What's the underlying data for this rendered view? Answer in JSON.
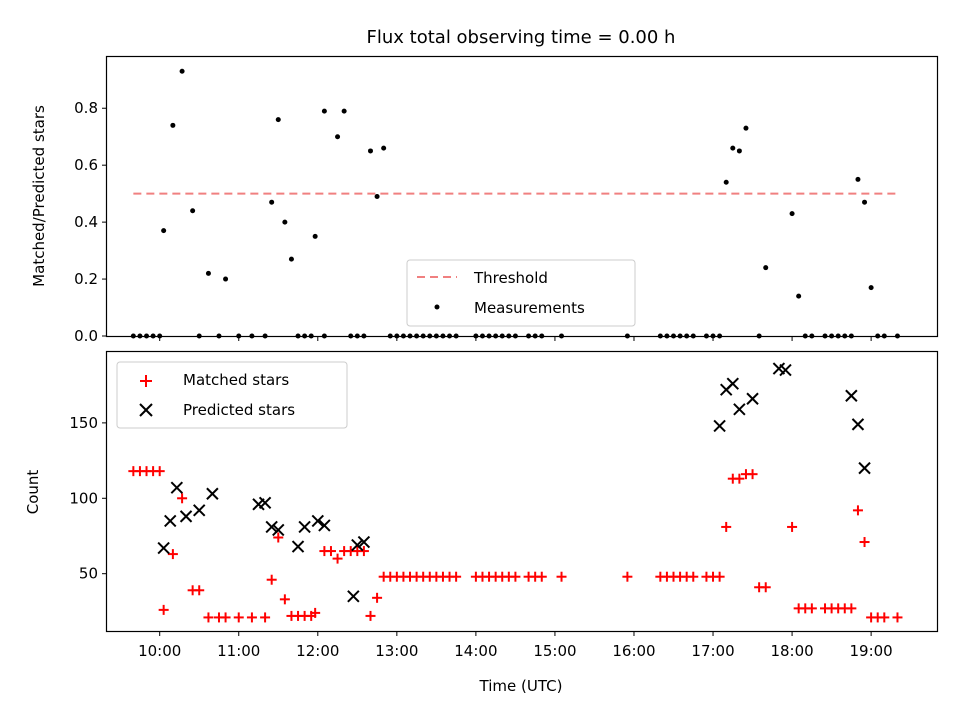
{
  "chart_data": [
    {
      "type": "scatter",
      "title": "Flux total observing time = 0.00 h",
      "ylabel": "Matched/Predicted stars",
      "xlabel": "",
      "ylim": [
        0,
        0.98
      ],
      "xlim": [
        "09:20",
        "19:50"
      ],
      "yticks": [
        0.0,
        0.2,
        0.4,
        0.6,
        0.8
      ],
      "ytick_labels": [
        "0.0",
        "0.2",
        "0.4",
        "0.6",
        "0.8"
      ],
      "xticks": [
        "10:00",
        "11:00",
        "12:00",
        "13:00",
        "14:00",
        "15:00",
        "16:00",
        "17:00",
        "18:00",
        "19:00"
      ],
      "legend_position": "lower-center",
      "threshold": {
        "name": "Threshold",
        "value": 0.5,
        "x": [
          "09:40",
          "19:20"
        ],
        "color": "#f08080",
        "style": "dashed"
      },
      "series": [
        {
          "name": "Measurements",
          "color": "#000000",
          "marker": "dot",
          "points": [
            [
              "09:40",
              0
            ],
            [
              "09:45",
              0
            ],
            [
              "09:50",
              0
            ],
            [
              "09:55",
              0
            ],
            [
              "10:00",
              0
            ],
            [
              "10:03",
              0.37
            ],
            [
              "10:10",
              0.74
            ],
            [
              "10:17",
              0.93
            ],
            [
              "10:25",
              0.44
            ],
            [
              "10:30",
              0
            ],
            [
              "10:37",
              0.22
            ],
            [
              "10:45",
              0
            ],
            [
              "10:50",
              0.2
            ],
            [
              "11:00",
              0
            ],
            [
              "11:10",
              0
            ],
            [
              "11:20",
              0
            ],
            [
              "11:25",
              0.47
            ],
            [
              "11:30",
              0.76
            ],
            [
              "11:35",
              0.4
            ],
            [
              "11:40",
              0.27
            ],
            [
              "11:45",
              0
            ],
            [
              "11:50",
              0
            ],
            [
              "11:55",
              0
            ],
            [
              "11:58",
              0.35
            ],
            [
              "12:05",
              0.79
            ],
            [
              "12:05",
              0
            ],
            [
              "12:15",
              0.7
            ],
            [
              "12:20",
              0.79
            ],
            [
              "12:25",
              0
            ],
            [
              "12:30",
              0
            ],
            [
              "12:35",
              0
            ],
            [
              "12:40",
              0.65
            ],
            [
              "12:45",
              0.49
            ],
            [
              "12:50",
              0.66
            ],
            [
              "12:55",
              0
            ],
            [
              "13:00",
              0
            ],
            [
              "13:05",
              0
            ],
            [
              "13:10",
              0
            ],
            [
              "13:15",
              0
            ],
            [
              "13:20",
              0
            ],
            [
              "13:25",
              0
            ],
            [
              "13:30",
              0
            ],
            [
              "13:35",
              0
            ],
            [
              "13:40",
              0
            ],
            [
              "13:45",
              0
            ],
            [
              "14:00",
              0
            ],
            [
              "14:05",
              0
            ],
            [
              "14:10",
              0
            ],
            [
              "14:15",
              0
            ],
            [
              "14:20",
              0
            ],
            [
              "14:25",
              0
            ],
            [
              "14:30",
              0
            ],
            [
              "14:40",
              0
            ],
            [
              "14:45",
              0
            ],
            [
              "14:50",
              0
            ],
            [
              "15:05",
              0
            ],
            [
              "15:55",
              0
            ],
            [
              "16:20",
              0
            ],
            [
              "16:25",
              0
            ],
            [
              "16:30",
              0
            ],
            [
              "16:35",
              0
            ],
            [
              "16:40",
              0
            ],
            [
              "16:45",
              0
            ],
            [
              "16:55",
              0
            ],
            [
              "17:00",
              0
            ],
            [
              "17:05",
              0
            ],
            [
              "17:10",
              0.54
            ],
            [
              "17:15",
              0.66
            ],
            [
              "17:20",
              0.65
            ],
            [
              "17:25",
              0.73
            ],
            [
              "17:35",
              0
            ],
            [
              "17:40",
              0.24
            ],
            [
              "18:00",
              0.43
            ],
            [
              "18:05",
              0.14
            ],
            [
              "18:10",
              0
            ],
            [
              "18:15",
              0
            ],
            [
              "18:25",
              0
            ],
            [
              "18:30",
              0
            ],
            [
              "18:35",
              0
            ],
            [
              "18:40",
              0
            ],
            [
              "18:45",
              0
            ],
            [
              "18:50",
              0.55
            ],
            [
              "18:55",
              0.47
            ],
            [
              "19:00",
              0.17
            ],
            [
              "19:05",
              0
            ],
            [
              "19:10",
              0
            ],
            [
              "19:20",
              0
            ]
          ]
        }
      ]
    },
    {
      "type": "scatter",
      "title": "",
      "ylabel": "Count",
      "xlabel": "Time (UTC)",
      "ylim": [
        12,
        197
      ],
      "xlim": [
        "09:20",
        "19:50"
      ],
      "yticks": [
        50,
        100,
        150
      ],
      "ytick_labels": [
        "50",
        "100",
        "150"
      ],
      "xticks": [
        "10:00",
        "11:00",
        "12:00",
        "13:00",
        "14:00",
        "15:00",
        "16:00",
        "17:00",
        "18:00",
        "19:00"
      ],
      "xtick_labels": [
        "10:00",
        "11:00",
        "12:00",
        "13:00",
        "14:00",
        "15:00",
        "16:00",
        "17:00",
        "18:00",
        "19:00"
      ],
      "legend_position": "upper-left",
      "series": [
        {
          "name": "Matched stars",
          "color": "#ff0000",
          "marker": "plus",
          "points": [
            [
              "09:40",
              118
            ],
            [
              "09:45",
              118
            ],
            [
              "09:50",
              118
            ],
            [
              "09:55",
              118
            ],
            [
              "10:00",
              118
            ],
            [
              "10:03",
              26
            ],
            [
              "10:10",
              63
            ],
            [
              "10:17",
              100
            ],
            [
              "10:25",
              39
            ],
            [
              "10:30",
              39
            ],
            [
              "10:37",
              21
            ],
            [
              "10:45",
              21
            ],
            [
              "10:50",
              21
            ],
            [
              "11:00",
              21
            ],
            [
              "11:10",
              21
            ],
            [
              "11:20",
              21
            ],
            [
              "11:25",
              46
            ],
            [
              "11:30",
              74
            ],
            [
              "11:35",
              33
            ],
            [
              "11:40",
              22
            ],
            [
              "11:45",
              22
            ],
            [
              "11:50",
              22
            ],
            [
              "11:55",
              22
            ],
            [
              "11:58",
              24
            ],
            [
              "12:05",
              65
            ],
            [
              "12:10",
              65
            ],
            [
              "12:15",
              60
            ],
            [
              "12:20",
              65
            ],
            [
              "12:25",
              65
            ],
            [
              "12:30",
              65
            ],
            [
              "12:35",
              65
            ],
            [
              "12:40",
              22
            ],
            [
              "12:45",
              34
            ],
            [
              "12:50",
              48
            ],
            [
              "12:55",
              48
            ],
            [
              "13:00",
              48
            ],
            [
              "13:05",
              48
            ],
            [
              "13:10",
              48
            ],
            [
              "13:15",
              48
            ],
            [
              "13:20",
              48
            ],
            [
              "13:25",
              48
            ],
            [
              "13:30",
              48
            ],
            [
              "13:35",
              48
            ],
            [
              "13:40",
              48
            ],
            [
              "13:45",
              48
            ],
            [
              "14:00",
              48
            ],
            [
              "14:05",
              48
            ],
            [
              "14:10",
              48
            ],
            [
              "14:15",
              48
            ],
            [
              "14:20",
              48
            ],
            [
              "14:25",
              48
            ],
            [
              "14:30",
              48
            ],
            [
              "14:40",
              48
            ],
            [
              "14:45",
              48
            ],
            [
              "14:50",
              48
            ],
            [
              "15:05",
              48
            ],
            [
              "15:55",
              48
            ],
            [
              "16:20",
              48
            ],
            [
              "16:25",
              48
            ],
            [
              "16:30",
              48
            ],
            [
              "16:35",
              48
            ],
            [
              "16:40",
              48
            ],
            [
              "16:45",
              48
            ],
            [
              "16:55",
              48
            ],
            [
              "17:00",
              48
            ],
            [
              "17:05",
              48
            ],
            [
              "17:10",
              81
            ],
            [
              "17:15",
              113
            ],
            [
              "17:20",
              113
            ],
            [
              "17:25",
              116
            ],
            [
              "17:30",
              116
            ],
            [
              "17:35",
              41
            ],
            [
              "17:40",
              41
            ],
            [
              "18:00",
              81
            ],
            [
              "18:05",
              27
            ],
            [
              "18:10",
              27
            ],
            [
              "18:15",
              27
            ],
            [
              "18:25",
              27
            ],
            [
              "18:30",
              27
            ],
            [
              "18:35",
              27
            ],
            [
              "18:40",
              27
            ],
            [
              "18:45",
              27
            ],
            [
              "18:50",
              92
            ],
            [
              "18:55",
              71
            ],
            [
              "19:00",
              21
            ],
            [
              "19:05",
              21
            ],
            [
              "19:10",
              21
            ],
            [
              "19:20",
              21
            ]
          ]
        },
        {
          "name": "Predicted stars",
          "color": "#000000",
          "marker": "x",
          "points": [
            [
              "10:03",
              67
            ],
            [
              "10:08",
              85
            ],
            [
              "10:13",
              107
            ],
            [
              "10:20",
              88
            ],
            [
              "10:30",
              92
            ],
            [
              "10:40",
              103
            ],
            [
              "11:15",
              96
            ],
            [
              "11:20",
              97
            ],
            [
              "11:25",
              81
            ],
            [
              "11:30",
              79
            ],
            [
              "11:45",
              68
            ],
            [
              "11:50",
              81
            ],
            [
              "12:00",
              85
            ],
            [
              "12:05",
              82
            ],
            [
              "12:27",
              35
            ],
            [
              "12:30",
              69
            ],
            [
              "12:35",
              71
            ],
            [
              "17:05",
              148
            ],
            [
              "17:10",
              172
            ],
            [
              "17:15",
              176
            ],
            [
              "17:20",
              159
            ],
            [
              "17:30",
              166
            ],
            [
              "17:50",
              186
            ],
            [
              "17:55",
              185
            ],
            [
              "18:45",
              168
            ],
            [
              "18:50",
              149
            ],
            [
              "18:55",
              120
            ]
          ]
        }
      ]
    }
  ]
}
